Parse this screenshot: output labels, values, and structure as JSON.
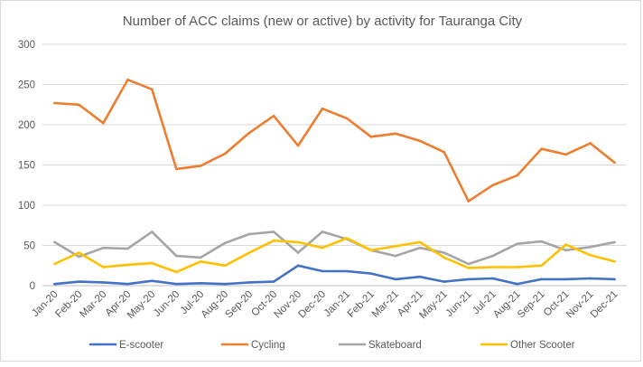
{
  "chart_data": {
    "type": "line",
    "title": "Number of ACC claims (new or active) by activity for Tauranga City",
    "xlabel": "",
    "ylabel": "",
    "ylim": [
      0,
      300
    ],
    "yticks": [
      0,
      50,
      100,
      150,
      200,
      250,
      300
    ],
    "grid": true,
    "legend_position": "bottom",
    "categories": [
      "Jan-20",
      "Feb-20",
      "Mar-20",
      "Apr-20",
      "May-20",
      "Jun-20",
      "Jul-20",
      "Aug-20",
      "Sep-20",
      "Oct-20",
      "Nov-20",
      "Dec-20",
      "Jan-21",
      "Feb-21",
      "Mar-21",
      "Apr-21",
      "May-21",
      "Jun-21",
      "Jul-21",
      "Aug-21",
      "Sep-21",
      "Oct-21",
      "Nov-21",
      "Dec-21"
    ],
    "series": [
      {
        "name": "E-scooter",
        "color": "#4472c4",
        "values": [
          2,
          5,
          4,
          2,
          6,
          2,
          3,
          2,
          4,
          5,
          25,
          18,
          18,
          15,
          8,
          11,
          5,
          8,
          9,
          2,
          8,
          8,
          9,
          8
        ]
      },
      {
        "name": "Cycling",
        "color": "#ed7d31",
        "values": [
          227,
          225,
          202,
          256,
          244,
          145,
          149,
          164,
          190,
          211,
          174,
          220,
          208,
          185,
          189,
          180,
          166,
          105,
          125,
          137,
          170,
          163,
          177,
          153
        ]
      },
      {
        "name": "Skateboard",
        "color": "#a5a5a5",
        "values": [
          54,
          36,
          47,
          46,
          67,
          37,
          35,
          53,
          64,
          67,
          41,
          67,
          58,
          44,
          37,
          47,
          41,
          27,
          37,
          52,
          55,
          44,
          48,
          54
        ]
      },
      {
        "name": "Other Scooter",
        "color": "#ffc000",
        "values": [
          27,
          41,
          23,
          26,
          28,
          17,
          30,
          25,
          41,
          56,
          54,
          47,
          59,
          44,
          49,
          54,
          35,
          22,
          23,
          23,
          25,
          51,
          38,
          30
        ]
      }
    ]
  }
}
